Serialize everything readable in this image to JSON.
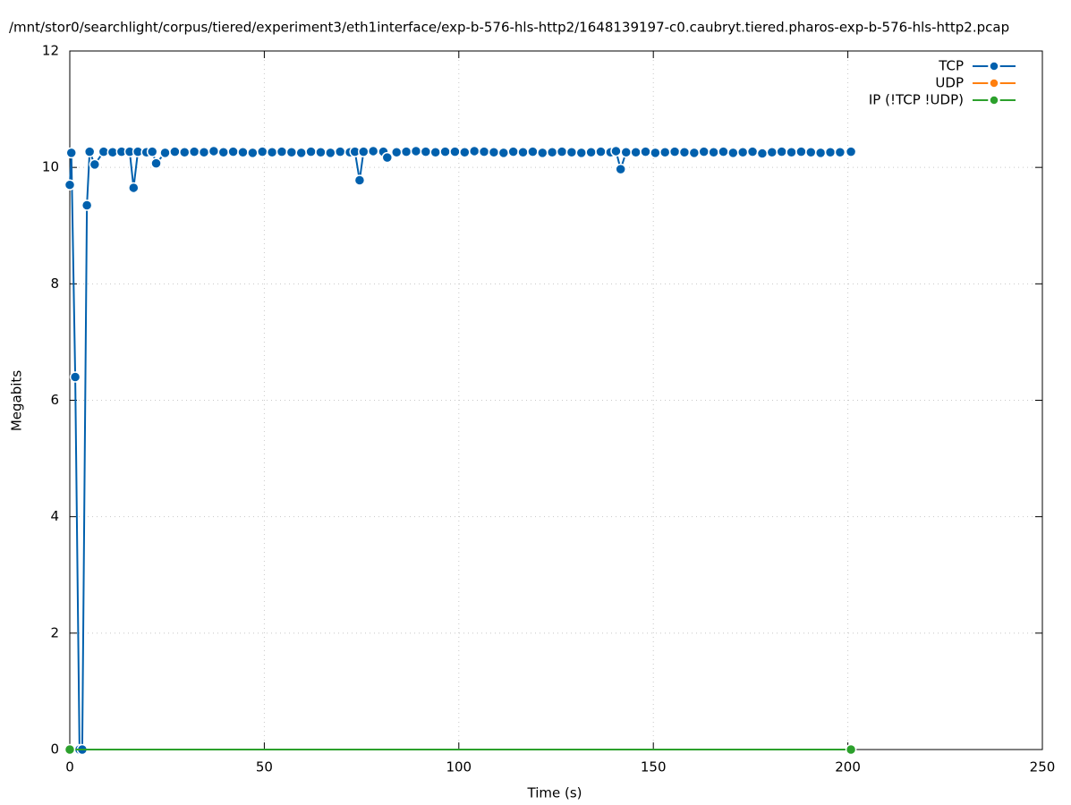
{
  "chart_data": {
    "type": "line",
    "title": "/mnt/stor0/searchlight/corpus/tiered/experiment3/eth1interface/exp-b-576-hls-http2/1648139197-c0.caubryt.tiered.pharos-exp-b-576-hls-http2.pcap",
    "x_label": "Time (s)",
    "y_label": "Megabits",
    "xlim": [
      0,
      250
    ],
    "xticks": [
      0,
      50,
      100,
      150,
      200,
      250
    ],
    "ylim": [
      0,
      12
    ],
    "yticks": [
      0,
      2,
      4,
      6,
      8,
      10,
      12
    ],
    "grid": true,
    "legend": "top-right",
    "series": [
      {
        "name": "TCP",
        "color": "#0060ad",
        "x": [
          0,
          0.4,
          1.4,
          2.5,
          3.2,
          4.4,
          5.1,
          6.4,
          8.7,
          11,
          13.3,
          15.4,
          16.4,
          17.5,
          19.7,
          21.2,
          22.2,
          24.5,
          27,
          29.5,
          32,
          34.5,
          37,
          39.5,
          42,
          44.5,
          47,
          49.5,
          52,
          54.5,
          57,
          59.5,
          62,
          64.5,
          67,
          69.5,
          72,
          73.3,
          74.5,
          75.5,
          78,
          80.6,
          81.6,
          84,
          86.5,
          89,
          91.5,
          94,
          96.5,
          99,
          101.5,
          104,
          106.5,
          109,
          111.5,
          114,
          116.5,
          119,
          121.5,
          124,
          126.5,
          129,
          131.5,
          134,
          136.5,
          139,
          140.4,
          141.6,
          143,
          145.5,
          148,
          150.5,
          153,
          155.5,
          158,
          160.5,
          163,
          165.5,
          168,
          170.5,
          173,
          175.5,
          178,
          180.5,
          183,
          185.5,
          188,
          190.5,
          193,
          195.5,
          198,
          200.8
        ],
        "values": [
          9.7,
          10.25,
          6.4,
          0,
          0,
          9.35,
          10.27,
          10.05,
          10.27,
          10.26,
          10.27,
          10.27,
          9.65,
          10.27,
          10.26,
          10.27,
          10.07,
          10.25,
          10.27,
          10.26,
          10.27,
          10.26,
          10.28,
          10.26,
          10.27,
          10.26,
          10.25,
          10.27,
          10.26,
          10.27,
          10.26,
          10.25,
          10.27,
          10.26,
          10.25,
          10.27,
          10.26,
          10.27,
          9.78,
          10.27,
          10.28,
          10.27,
          10.17,
          10.26,
          10.27,
          10.28,
          10.27,
          10.26,
          10.27,
          10.27,
          10.26,
          10.28,
          10.27,
          10.26,
          10.25,
          10.27,
          10.26,
          10.27,
          10.25,
          10.26,
          10.27,
          10.26,
          10.25,
          10.26,
          10.27,
          10.26,
          10.28,
          9.97,
          10.26,
          10.26,
          10.27,
          10.25,
          10.26,
          10.27,
          10.26,
          10.25,
          10.27,
          10.26,
          10.27,
          10.25,
          10.26,
          10.27,
          10.24,
          10.26,
          10.27,
          10.26,
          10.27,
          10.26,
          10.25,
          10.26,
          10.26,
          10.27
        ]
      },
      {
        "name": "UDP",
        "color": "#ff7f0e",
        "x": [],
        "values": []
      },
      {
        "name": "IP (!TCP  !UDP)",
        "color": "#2ca02c",
        "x": [
          0,
          200.8
        ],
        "values": [
          0,
          0
        ]
      }
    ]
  }
}
